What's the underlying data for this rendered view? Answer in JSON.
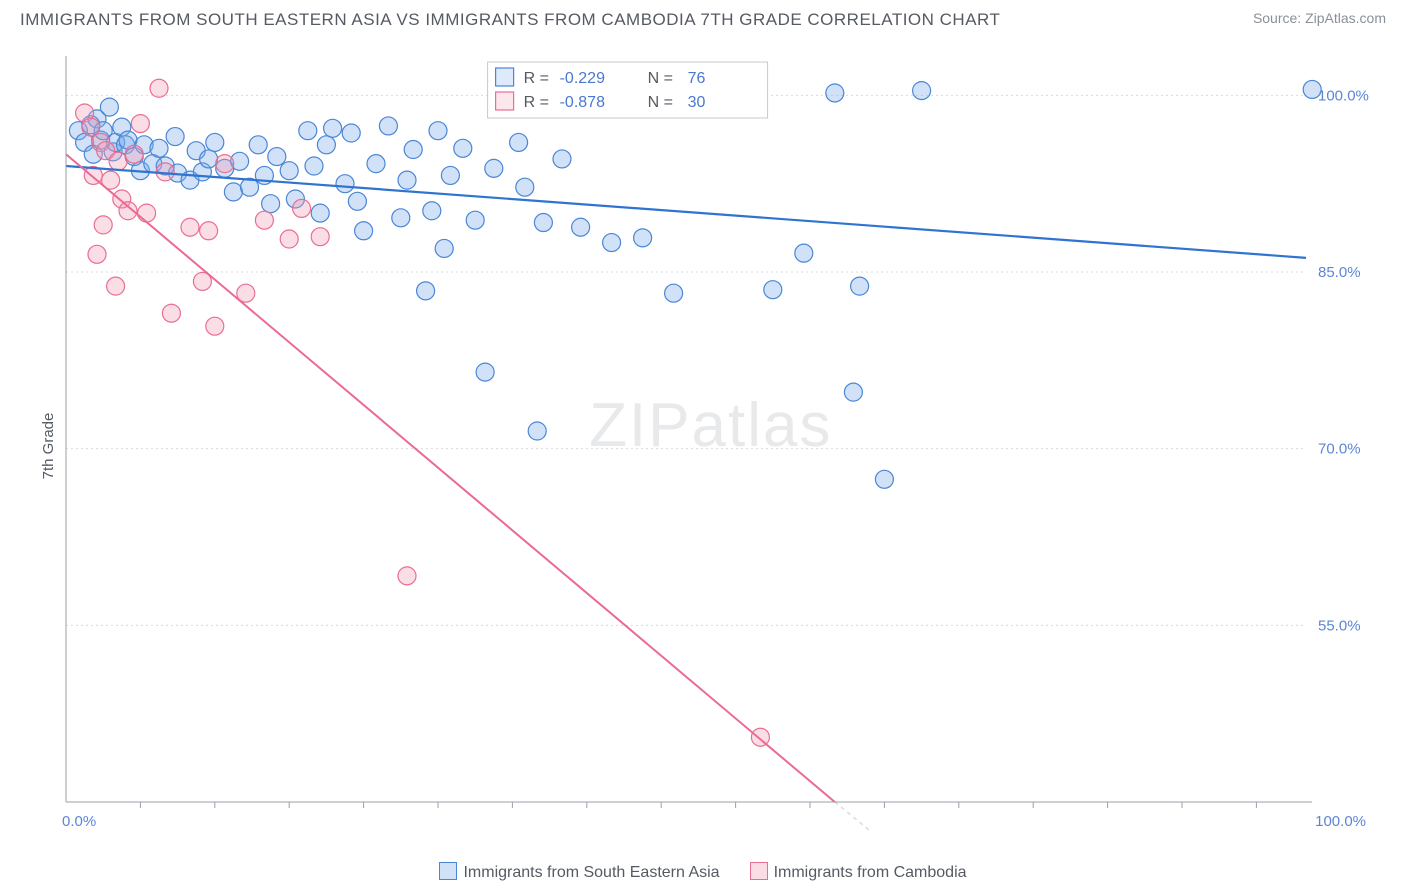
{
  "title": "IMMIGRANTS FROM SOUTH EASTERN ASIA VS IMMIGRANTS FROM CAMBODIA 7TH GRADE CORRELATION CHART",
  "source_label": "Source:",
  "source_name": "ZipAtlas.com",
  "ylabel": "7th Grade",
  "watermark_a": "ZIP",
  "watermark_b": "atlas",
  "chart": {
    "type": "scatter",
    "background_color": "#ffffff",
    "grid_color": "#d8dbe0",
    "axis_color": "#9aa0a8",
    "xlim": [
      0,
      100
    ],
    "ylim": [
      40,
      103
    ],
    "x_origin_label": "0.0%",
    "x_max_label": "100.0%",
    "y_ticks": [
      55.0,
      70.0,
      85.0,
      100.0
    ],
    "y_tick_labels": [
      "55.0%",
      "70.0%",
      "85.0%",
      "100.0%"
    ],
    "x_minor_ticks": [
      6,
      12,
      18,
      24,
      30,
      36,
      42,
      48,
      54,
      60,
      66,
      72,
      78,
      84,
      90,
      96
    ],
    "marker_radius": 9,
    "stats_box": {
      "border_color": "#c5c9d0",
      "rows": [
        {
          "swatch": "blue",
          "r_label": "R =",
          "r": "-0.229",
          "n_label": "N =",
          "n": "76"
        },
        {
          "swatch": "pink",
          "r_label": "R =",
          "r": "-0.878",
          "n_label": "N =",
          "n": "30"
        }
      ]
    },
    "series": [
      {
        "name": "Immigrants from South Eastern Asia",
        "class": "blue",
        "point_fill": "#7badea",
        "point_stroke": "#4a86d6",
        "line_color": "#2f74d0",
        "trend": {
          "x1": 0,
          "y1": 94.0,
          "x2": 100,
          "y2": 86.2
        },
        "points": [
          [
            1,
            97
          ],
          [
            1.5,
            96
          ],
          [
            2,
            97.5
          ],
          [
            2.2,
            95
          ],
          [
            2.5,
            98
          ],
          [
            2.8,
            96.2
          ],
          [
            3,
            97
          ],
          [
            3.5,
            99
          ],
          [
            3.8,
            95.2
          ],
          [
            4,
            96
          ],
          [
            4.5,
            97.3
          ],
          [
            4.8,
            95.8
          ],
          [
            5,
            96.2
          ],
          [
            5.5,
            94.8
          ],
          [
            6,
            93.6
          ],
          [
            6.3,
            95.8
          ],
          [
            7,
            94.2
          ],
          [
            7.5,
            95.5
          ],
          [
            8,
            94
          ],
          [
            8.8,
            96.5
          ],
          [
            9,
            93.4
          ],
          [
            10,
            92.8
          ],
          [
            10.5,
            95.3
          ],
          [
            11,
            93.5
          ],
          [
            11.5,
            94.6
          ],
          [
            12,
            96
          ],
          [
            12.8,
            93.8
          ],
          [
            13.5,
            91.8
          ],
          [
            14,
            94.4
          ],
          [
            14.8,
            92.2
          ],
          [
            15.5,
            95.8
          ],
          [
            16,
            93.2
          ],
          [
            16.5,
            90.8
          ],
          [
            17,
            94.8
          ],
          [
            18,
            93.6
          ],
          [
            18.5,
            91.2
          ],
          [
            19.5,
            97
          ],
          [
            20,
            94
          ],
          [
            20.5,
            90
          ],
          [
            21,
            95.8
          ],
          [
            21.5,
            97.2
          ],
          [
            22.5,
            92.5
          ],
          [
            23,
            96.8
          ],
          [
            23.5,
            91
          ],
          [
            24,
            88.5
          ],
          [
            25,
            94.2
          ],
          [
            26,
            97.4
          ],
          [
            27,
            89.6
          ],
          [
            27.5,
            92.8
          ],
          [
            28,
            95.4
          ],
          [
            29,
            83.4
          ],
          [
            29.5,
            90.2
          ],
          [
            30,
            97
          ],
          [
            30.5,
            87
          ],
          [
            31,
            93.2
          ],
          [
            32,
            95.5
          ],
          [
            33,
            89.4
          ],
          [
            33.8,
            76.5
          ],
          [
            34.5,
            93.8
          ],
          [
            36.5,
            96
          ],
          [
            37,
            92.2
          ],
          [
            38,
            71.5
          ],
          [
            38.5,
            89.2
          ],
          [
            40,
            94.6
          ],
          [
            41.5,
            88.8
          ],
          [
            44,
            87.5
          ],
          [
            46.5,
            87.9
          ],
          [
            49,
            83.2
          ],
          [
            57,
            83.5
          ],
          [
            59.5,
            86.6
          ],
          [
            62,
            100.2
          ],
          [
            63.5,
            74.8
          ],
          [
            64,
            83.8
          ],
          [
            66,
            67.4
          ],
          [
            69,
            100.4
          ],
          [
            100.5,
            100.5
          ]
        ]
      },
      {
        "name": "Immigrants from Cambodia",
        "class": "pink",
        "point_fill": "#f49fb6",
        "point_stroke": "#e86e92",
        "line_color": "#eb6a94",
        "trend": {
          "x1": 0,
          "y1": 95.0,
          "x2": 62,
          "y2": 40.0
        },
        "points": [
          [
            1.5,
            98.5
          ],
          [
            2,
            97.3
          ],
          [
            2.8,
            96
          ],
          [
            2.2,
            93.2
          ],
          [
            3.2,
            95.3
          ],
          [
            3.6,
            92.8
          ],
          [
            4.5,
            91.2
          ],
          [
            4.2,
            94.4
          ],
          [
            5,
            90.2
          ],
          [
            5.5,
            95
          ],
          [
            3,
            89
          ],
          [
            2.5,
            86.5
          ],
          [
            6,
            97.6
          ],
          [
            6.5,
            90
          ],
          [
            7.5,
            100.6
          ],
          [
            8,
            93.5
          ],
          [
            4,
            83.8
          ],
          [
            8.5,
            81.5
          ],
          [
            10,
            88.8
          ],
          [
            11,
            84.2
          ],
          [
            11.5,
            88.5
          ],
          [
            12,
            80.4
          ],
          [
            12.8,
            94.2
          ],
          [
            14.5,
            83.2
          ],
          [
            16,
            89.4
          ],
          [
            18,
            87.8
          ],
          [
            19,
            90.4
          ],
          [
            20.5,
            88
          ],
          [
            27.5,
            59.2
          ],
          [
            56,
            45.5
          ]
        ]
      }
    ],
    "legend_bottom": [
      {
        "swatch": "blue",
        "label": "Immigrants from South Eastern Asia"
      },
      {
        "swatch": "pink",
        "label": "Immigrants from Cambodia"
      }
    ]
  }
}
